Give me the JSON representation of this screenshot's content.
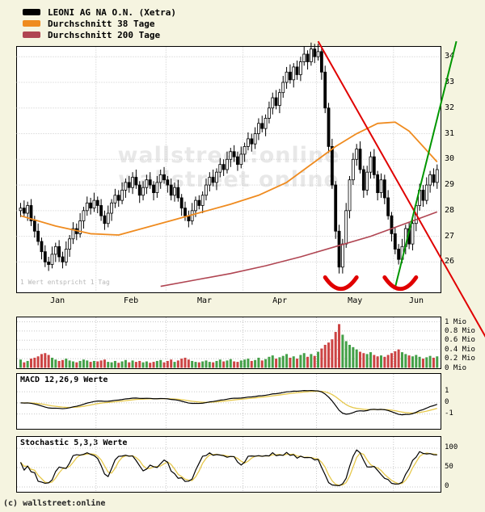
{
  "legend": {
    "items": [
      {
        "label": "LEONI AG NA O.N. (Xetra)",
        "color": "#000000"
      },
      {
        "label": "Durchschnitt 38 Tage",
        "color": "#ef8b1f"
      },
      {
        "label": "Durchschnitt 200 Tage",
        "color": "#b04552"
      }
    ]
  },
  "watermark": {
    "line1": "wallstreet:online",
    "line2": "wallstreet online"
  },
  "main": {
    "hint": "1 Wert entspricht 1 Tag"
  },
  "panels": {
    "volume": {
      "ticks": [
        {
          "value": 1,
          "label": "1 Mio"
        },
        {
          "value": 0.8,
          "label": "0.8 Mio"
        },
        {
          "value": 0.6,
          "label": "0.6 Mio"
        },
        {
          "value": 0.4,
          "label": "0.4 Mio"
        },
        {
          "value": 0.2,
          "label": "0.2 Mio"
        },
        {
          "value": 0,
          "label": "0 Mio"
        }
      ]
    },
    "macd": {
      "title": "MACD 12,26,9 Werte",
      "ticks": [
        {
          "value": 1,
          "label": "1"
        },
        {
          "value": 0,
          "label": "0"
        },
        {
          "value": -1,
          "label": "-1"
        }
      ]
    },
    "stoch": {
      "title": "Stochastic 5,3,3 Werte",
      "ticks": [
        {
          "value": 100,
          "label": "100"
        },
        {
          "value": 50,
          "label": "50"
        },
        {
          "value": 0,
          "label": "0"
        }
      ]
    }
  },
  "footer": {
    "copyright": "(c) wallstreet:online"
  },
  "colors": {
    "background": "#f5f4e0",
    "panel_bg": "#ffffff",
    "border": "#000000",
    "grid": "#c8c8c8",
    "candle_up": "#ffffff",
    "candle_down": "#000000",
    "candle_outline": "#000000",
    "ma38": "#ef8b1f",
    "ma200": "#b04552",
    "trend_down": "#e00000",
    "trend_up": "#009600",
    "arc": "#e00000",
    "volume_up": "#44a048",
    "volume_down": "#cc4444",
    "macd_line": "#000000",
    "macd_signal": "#e6c84b",
    "stoch_k": "#000000",
    "stoch_d": "#e6c84b"
  },
  "chart_data": {
    "type": "candlestick",
    "title": "LEONI AG NA O.N. (Xetra)",
    "legend_series": [
      "LEONI AG NA O.N. (Xetra)",
      "Durchschnitt 38 Tage",
      "Durchschnitt 200 Tage"
    ],
    "x_months": [
      "Jan",
      "Feb",
      "Mar",
      "Apr",
      "May",
      "Jun"
    ],
    "month_start_days": [
      0,
      22,
      42,
      64,
      85,
      107
    ],
    "total_days": 120,
    "price_axis": {
      "min": 24.8,
      "max": 34.4,
      "ticks": [
        34,
        33,
        32,
        31,
        30,
        29,
        28,
        27,
        26
      ]
    },
    "candles": [
      [
        28.0,
        28.3,
        27.75,
        28.1
      ],
      [
        28.1,
        28.4,
        27.75,
        27.9
      ],
      [
        27.9,
        28.35,
        27.6,
        28.2
      ],
      [
        28.2,
        28.45,
        27.4,
        27.6
      ],
      [
        27.6,
        27.8,
        26.95,
        27.2
      ],
      [
        27.2,
        27.5,
        26.65,
        26.8
      ],
      [
        26.8,
        26.95,
        26.1,
        26.4
      ],
      [
        26.4,
        26.65,
        25.8,
        26.0
      ],
      [
        26.0,
        26.2,
        25.65,
        25.9
      ],
      [
        25.9,
        26.6,
        25.75,
        26.3
      ],
      [
        26.3,
        26.75,
        26.0,
        26.6
      ],
      [
        26.6,
        26.85,
        26.0,
        26.2
      ],
      [
        26.2,
        26.4,
        25.75,
        26.0
      ],
      [
        26.0,
        26.8,
        25.85,
        26.5
      ],
      [
        26.5,
        27.05,
        26.2,
        26.9
      ],
      [
        26.9,
        27.55,
        26.7,
        27.3
      ],
      [
        27.3,
        27.5,
        26.85,
        27.1
      ],
      [
        27.1,
        27.9,
        26.95,
        27.6
      ],
      [
        27.6,
        28.15,
        27.3,
        28.0
      ],
      [
        28.0,
        28.55,
        27.8,
        28.3
      ],
      [
        28.3,
        28.5,
        27.85,
        28.1
      ],
      [
        28.1,
        28.7,
        27.95,
        28.4
      ],
      [
        28.4,
        28.55,
        27.9,
        28.2
      ],
      [
        28.2,
        28.45,
        27.6,
        27.8
      ],
      [
        27.8,
        28.0,
        27.25,
        27.5
      ],
      [
        27.5,
        28.2,
        27.35,
        27.9
      ],
      [
        27.9,
        28.45,
        27.6,
        28.3
      ],
      [
        28.3,
        28.85,
        28.1,
        28.6
      ],
      [
        28.6,
        28.8,
        28.15,
        28.4
      ],
      [
        28.4,
        29.1,
        28.25,
        28.8
      ],
      [
        28.8,
        29.25,
        28.5,
        29.1
      ],
      [
        29.1,
        29.35,
        28.7,
        28.9
      ],
      [
        28.9,
        29.5,
        28.65,
        29.3
      ],
      [
        29.3,
        29.6,
        28.85,
        29.0
      ],
      [
        29.0,
        29.15,
        28.3,
        28.6
      ],
      [
        28.6,
        29.15,
        28.4,
        28.9
      ],
      [
        28.9,
        29.4,
        28.65,
        29.2
      ],
      [
        29.2,
        29.5,
        28.85,
        29.0
      ],
      [
        29.0,
        29.15,
        28.4,
        28.7
      ],
      [
        28.7,
        29.35,
        28.5,
        29.1
      ],
      [
        29.1,
        29.6,
        28.85,
        29.4
      ],
      [
        29.4,
        29.7,
        29.05,
        29.2
      ],
      [
        29.2,
        29.35,
        28.7,
        29.0
      ],
      [
        29.0,
        29.25,
        28.4,
        28.6
      ],
      [
        28.6,
        29.1,
        28.35,
        28.9
      ],
      [
        28.9,
        29.2,
        28.35,
        28.5
      ],
      [
        28.5,
        28.65,
        27.8,
        28.1
      ],
      [
        28.1,
        28.35,
        27.6,
        27.8
      ],
      [
        27.8,
        28.0,
        27.35,
        27.6
      ],
      [
        27.6,
        28.3,
        27.45,
        28.0
      ],
      [
        28.0,
        28.55,
        27.75,
        28.4
      ],
      [
        28.4,
        28.6,
        28.05,
        28.2
      ],
      [
        28.2,
        28.75,
        27.9,
        28.6
      ],
      [
        28.6,
        29.25,
        28.4,
        29.0
      ],
      [
        29.0,
        29.5,
        28.75,
        29.3
      ],
      [
        29.3,
        29.6,
        28.95,
        29.1
      ],
      [
        29.1,
        29.65,
        28.8,
        29.5
      ],
      [
        29.5,
        30.05,
        29.3,
        29.8
      ],
      [
        29.8,
        30.0,
        29.35,
        29.6
      ],
      [
        29.6,
        30.3,
        29.45,
        30.0
      ],
      [
        30.0,
        30.45,
        29.7,
        30.3
      ],
      [
        30.3,
        30.55,
        29.9,
        30.1
      ],
      [
        30.1,
        30.3,
        29.55,
        29.8
      ],
      [
        29.8,
        30.5,
        29.65,
        30.2
      ],
      [
        30.2,
        30.65,
        29.9,
        30.5
      ],
      [
        30.5,
        31.05,
        30.35,
        30.8
      ],
      [
        30.8,
        31.0,
        30.3,
        30.6
      ],
      [
        30.6,
        31.25,
        30.4,
        31.0
      ],
      [
        31.0,
        31.6,
        30.75,
        31.4
      ],
      [
        31.4,
        31.7,
        31.05,
        31.2
      ],
      [
        31.2,
        31.75,
        30.9,
        31.6
      ],
      [
        31.6,
        32.25,
        31.4,
        32.0
      ],
      [
        32.0,
        32.6,
        31.75,
        32.4
      ],
      [
        32.4,
        32.7,
        31.95,
        32.1
      ],
      [
        32.1,
        32.75,
        31.8,
        32.6
      ],
      [
        32.6,
        33.25,
        32.4,
        33.0
      ],
      [
        33.0,
        33.6,
        32.75,
        33.4
      ],
      [
        33.4,
        33.7,
        32.95,
        33.1
      ],
      [
        33.1,
        33.75,
        32.8,
        33.6
      ],
      [
        33.6,
        33.85,
        33.1,
        33.3
      ],
      [
        33.3,
        34.0,
        33.05,
        33.8
      ],
      [
        33.8,
        34.4,
        33.65,
        34.1
      ],
      [
        34.1,
        34.25,
        33.5,
        33.8
      ],
      [
        33.8,
        34.55,
        33.65,
        34.3
      ],
      [
        34.3,
        34.5,
        33.75,
        34.0
      ],
      [
        34.0,
        34.5,
        33.85,
        34.2
      ],
      [
        34.2,
        34.35,
        33.1,
        33.4
      ],
      [
        33.4,
        33.65,
        31.8,
        32.0
      ],
      [
        32.0,
        32.2,
        30.25,
        30.5
      ],
      [
        30.5,
        30.8,
        28.85,
        29.0
      ],
      [
        29.0,
        29.15,
        26.9,
        27.2
      ],
      [
        27.2,
        27.45,
        25.55,
        25.8
      ],
      [
        25.8,
        26.9,
        25.55,
        26.7
      ],
      [
        26.7,
        28.3,
        26.55,
        28.0
      ],
      [
        28.0,
        29.35,
        27.7,
        29.2
      ],
      [
        29.2,
        30.25,
        29.0,
        30.0
      ],
      [
        30.0,
        30.6,
        29.75,
        30.4
      ],
      [
        30.4,
        30.7,
        29.45,
        29.6
      ],
      [
        29.6,
        29.75,
        28.5,
        28.8
      ],
      [
        28.8,
        29.75,
        28.6,
        29.5
      ],
      [
        29.5,
        30.3,
        29.25,
        30.1
      ],
      [
        30.1,
        30.4,
        29.25,
        29.4
      ],
      [
        29.4,
        29.55,
        28.4,
        28.7
      ],
      [
        28.7,
        29.45,
        28.5,
        29.2
      ],
      [
        29.2,
        29.4,
        28.25,
        28.5
      ],
      [
        28.5,
        28.8,
        27.65,
        27.8
      ],
      [
        27.8,
        27.95,
        26.8,
        27.1
      ],
      [
        27.1,
        27.35,
        26.3,
        26.5
      ],
      [
        26.5,
        26.7,
        25.9,
        26.1
      ],
      [
        26.1,
        26.9,
        25.95,
        26.6
      ],
      [
        26.6,
        27.45,
        26.3,
        27.3
      ],
      [
        27.3,
        27.55,
        26.5,
        26.7
      ],
      [
        26.7,
        27.7,
        26.45,
        27.5
      ],
      [
        27.5,
        28.35,
        27.2,
        28.2
      ],
      [
        28.2,
        29.05,
        28.0,
        28.8
      ],
      [
        28.8,
        29.0,
        28.15,
        28.4
      ],
      [
        28.4,
        29.3,
        28.25,
        29.0
      ],
      [
        29.0,
        29.55,
        28.7,
        29.4
      ],
      [
        29.4,
        29.65,
        28.95,
        29.1
      ],
      [
        29.1,
        29.8,
        28.85,
        29.6
      ]
    ],
    "volume_axis": {
      "min": 0,
      "max": 1,
      "unit": "Mio"
    },
    "volume_mio": [
      0.18,
      0.12,
      0.15,
      0.2,
      0.22,
      0.25,
      0.3,
      0.32,
      0.28,
      0.22,
      0.18,
      0.15,
      0.17,
      0.2,
      0.16,
      0.14,
      0.12,
      0.15,
      0.18,
      0.16,
      0.13,
      0.15,
      0.14,
      0.16,
      0.18,
      0.13,
      0.12,
      0.15,
      0.11,
      0.14,
      0.17,
      0.12,
      0.16,
      0.13,
      0.15,
      0.12,
      0.14,
      0.11,
      0.13,
      0.15,
      0.17,
      0.12,
      0.15,
      0.18,
      0.13,
      0.16,
      0.2,
      0.22,
      0.18,
      0.15,
      0.13,
      0.12,
      0.14,
      0.16,
      0.13,
      0.12,
      0.15,
      0.18,
      0.14,
      0.16,
      0.19,
      0.14,
      0.13,
      0.16,
      0.18,
      0.2,
      0.15,
      0.17,
      0.22,
      0.16,
      0.19,
      0.24,
      0.27,
      0.2,
      0.23,
      0.26,
      0.3,
      0.22,
      0.25,
      0.2,
      0.28,
      0.32,
      0.24,
      0.3,
      0.26,
      0.35,
      0.42,
      0.5,
      0.55,
      0.62,
      0.78,
      0.95,
      0.72,
      0.58,
      0.5,
      0.45,
      0.4,
      0.35,
      0.32,
      0.3,
      0.34,
      0.28,
      0.25,
      0.27,
      0.24,
      0.28,
      0.32,
      0.36,
      0.4,
      0.34,
      0.3,
      0.27,
      0.25,
      0.28,
      0.24,
      0.2,
      0.23,
      0.26,
      0.22,
      0.25
    ],
    "ma38": [
      [
        0,
        27.8
      ],
      [
        10,
        27.4
      ],
      [
        20,
        27.1
      ],
      [
        28,
        27.05
      ],
      [
        36,
        27.35
      ],
      [
        44,
        27.65
      ],
      [
        52,
        27.95
      ],
      [
        60,
        28.25
      ],
      [
        68,
        28.6
      ],
      [
        76,
        29.1
      ],
      [
        84,
        29.9
      ],
      [
        90,
        30.5
      ],
      [
        96,
        31.0
      ],
      [
        102,
        31.4
      ],
      [
        107,
        31.45
      ],
      [
        111,
        31.1
      ],
      [
        115,
        30.5
      ],
      [
        119,
        29.9
      ]
    ],
    "ma200": [
      [
        40,
        25.05
      ],
      [
        50,
        25.3
      ],
      [
        60,
        25.55
      ],
      [
        70,
        25.85
      ],
      [
        80,
        26.2
      ],
      [
        90,
        26.6
      ],
      [
        100,
        27.0
      ],
      [
        106,
        27.3
      ],
      [
        110,
        27.5
      ],
      [
        114,
        27.7
      ],
      [
        119,
        27.95
      ]
    ],
    "trendlines": [
      {
        "name": "downtrend-line",
        "color_key": "trend_down",
        "from_day": 85,
        "from_price": 34.6,
        "to_day": 134,
        "to_price": 22.8
      },
      {
        "name": "uptrend-line",
        "color_key": "trend_up",
        "from_day": 107,
        "from_price": 25.0,
        "to_day": 124.5,
        "to_price": 34.6
      }
    ],
    "arcs": [
      {
        "name": "bottom-arc-may",
        "from_day": 87,
        "to_day": 96,
        "end_price": 25.4,
        "control_price": 24.5
      },
      {
        "name": "bottom-arc-june",
        "from_day": 104,
        "to_day": 113,
        "end_price": 25.4,
        "control_price": 24.5
      }
    ]
  }
}
